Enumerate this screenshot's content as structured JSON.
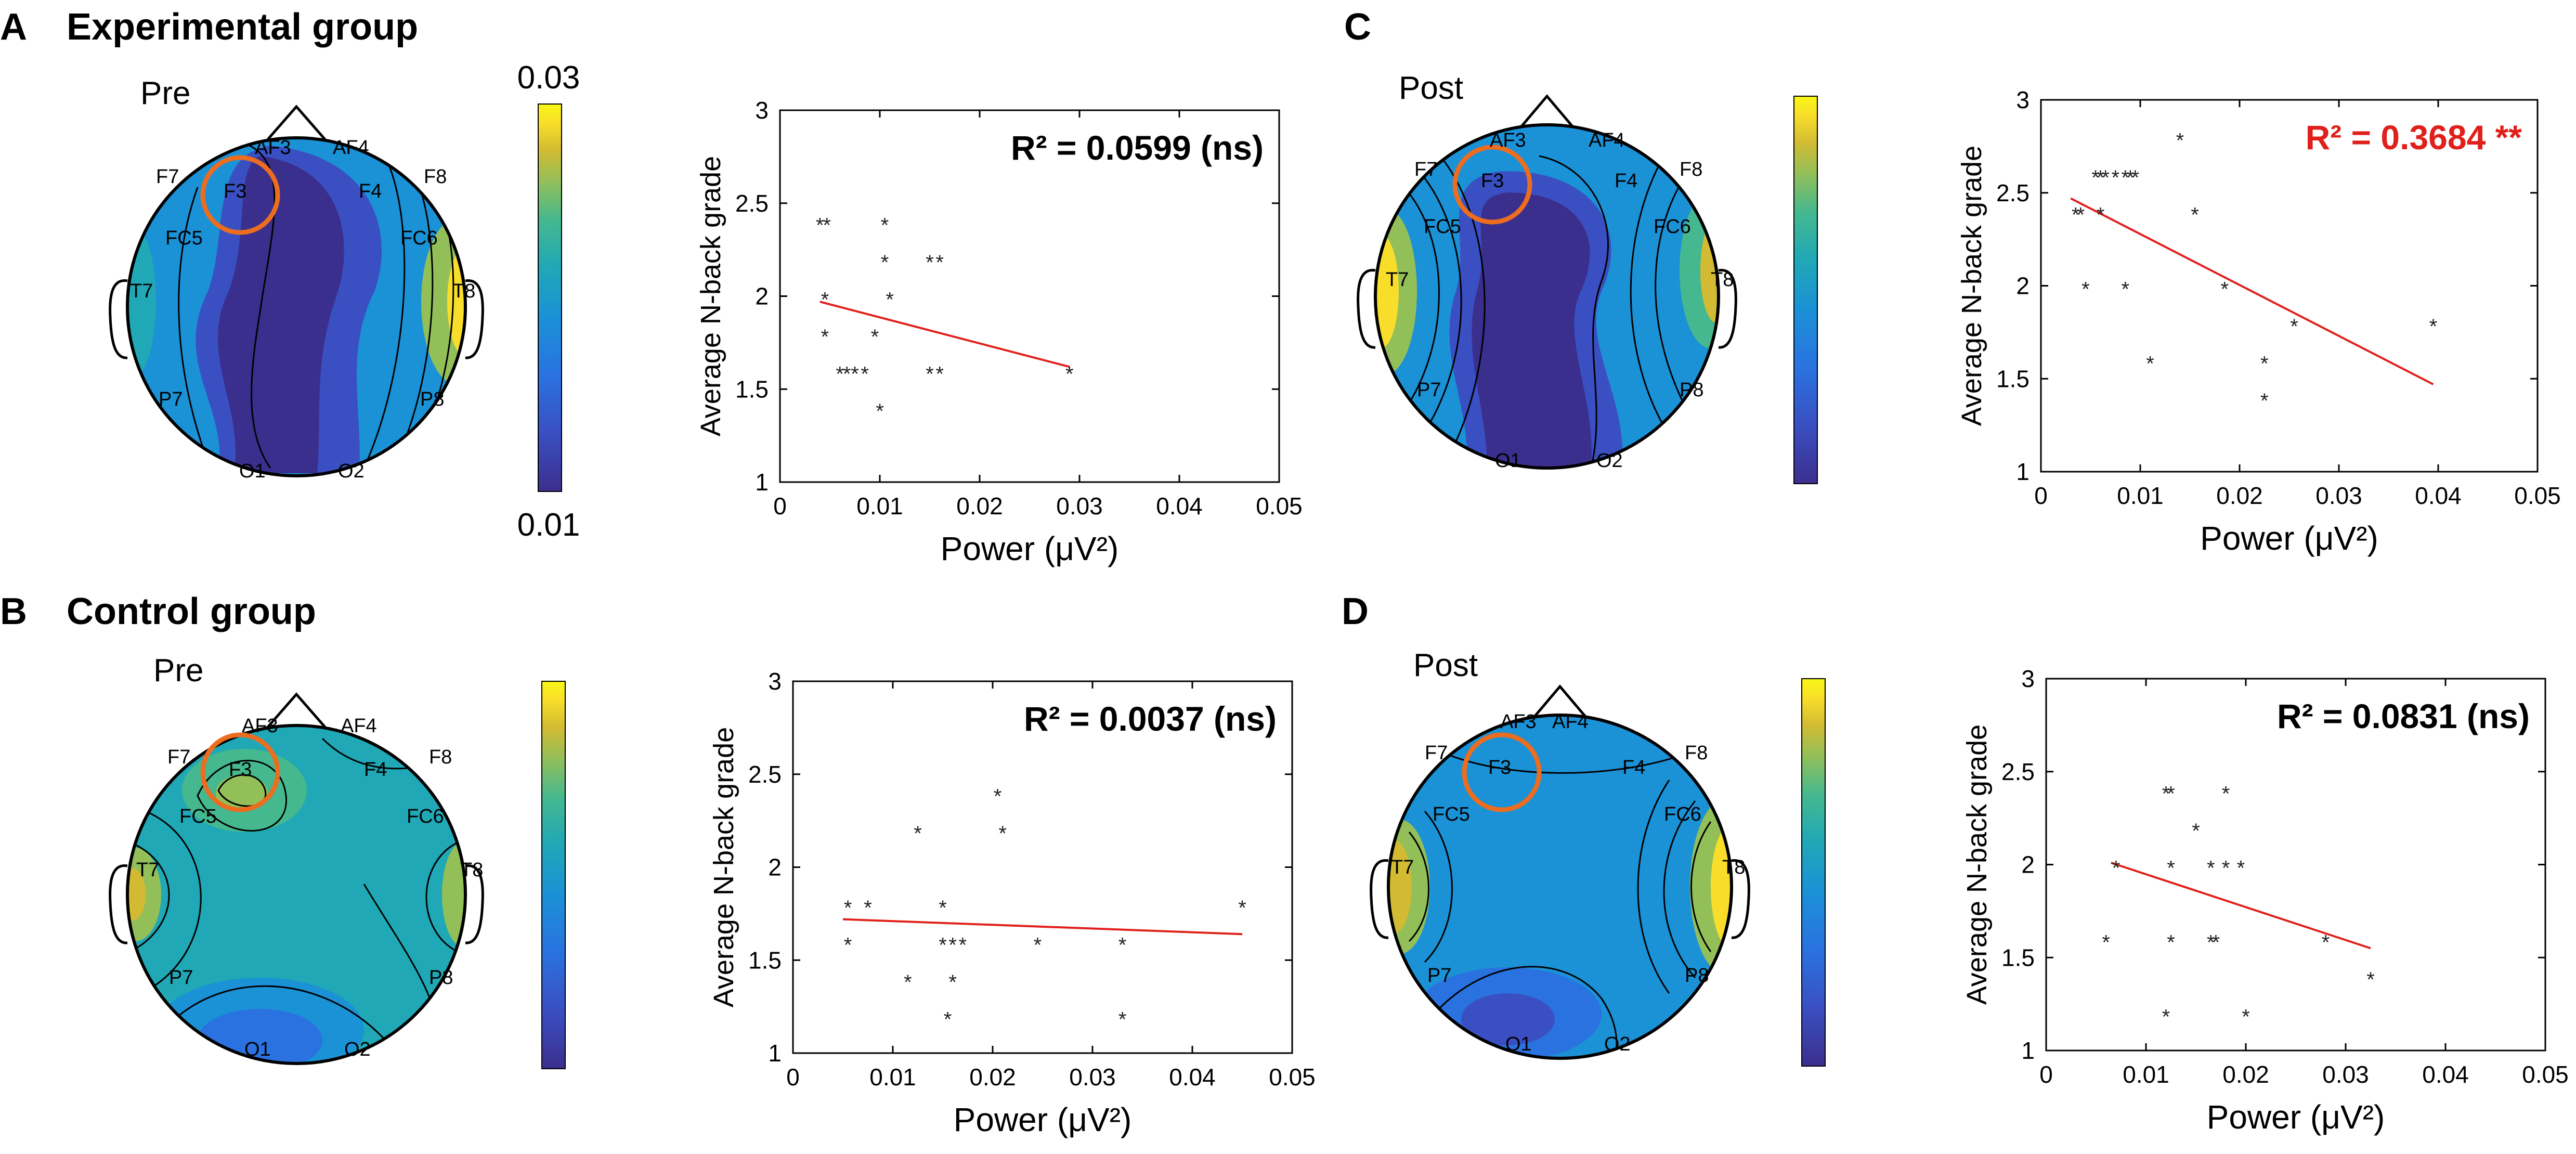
{
  "colors": {
    "axis": "#000000",
    "fit_line": "#e0201b",
    "sig_text": "#e0201b",
    "roi": "#ec6d1f",
    "marker": "#222222"
  },
  "colormap": [
    "#3b2f8e",
    "#3a4fc1",
    "#2a72e0",
    "#1b91d6",
    "#20a8b6",
    "#45b88f",
    "#93bf59",
    "#d2bb32",
    "#f8de2a",
    "#f9f715"
  ],
  "panels": [
    {
      "letter": "A",
      "group": "Experimental group",
      "topo": {
        "label": "Pre",
        "colorbar": {
          "top": "0.03",
          "bottom": "0.01"
        },
        "electrodes": [
          "AF3",
          "AF4",
          "F7",
          "F3",
          "F4",
          "F8",
          "FC5",
          "FC6",
          "T7",
          "T8",
          "P7",
          "P8",
          "O1",
          "O2"
        ],
        "roi": "F3"
      }
    },
    {
      "letter": "B",
      "group": "Control group",
      "topo": {
        "label": "Pre",
        "colorbar": {
          "top": "",
          "bottom": ""
        },
        "electrodes": [
          "AF3",
          "AF4",
          "F7",
          "F3",
          "F4",
          "F8",
          "FC5",
          "FC6",
          "T7",
          "T8",
          "P7",
          "P8",
          "O1",
          "O2"
        ],
        "roi": "F3"
      }
    },
    {
      "letter": "C",
      "group": "",
      "topo": {
        "label": "Post",
        "colorbar": {
          "top": "",
          "bottom": ""
        },
        "electrodes": [
          "AF3",
          "AF4",
          "F7",
          "F3",
          "F4",
          "F8",
          "FC5",
          "FC6",
          "T7",
          "T8",
          "P7",
          "P8",
          "O1",
          "O2"
        ],
        "roi": "F3"
      }
    },
    {
      "letter": "D",
      "group": "",
      "topo": {
        "label": "Post",
        "colorbar": {
          "top": "",
          "bottom": ""
        },
        "electrodes": [
          "AF3",
          "AF4",
          "F7",
          "F3",
          "F4",
          "F8",
          "FC5",
          "FC6",
          "T7",
          "T8",
          "P7",
          "P8",
          "O1",
          "O2"
        ],
        "roi": "F3"
      }
    }
  ],
  "chart_data": [
    {
      "id": "A",
      "type": "scatter",
      "xlabel": "Power (μV²)",
      "ylabel": "Average N-back grade",
      "xlim": [
        0,
        0.05
      ],
      "ylim": [
        1,
        3
      ],
      "xticks": [
        "0",
        "0.01",
        "0.02",
        "0.03",
        "0.04",
        "0.05"
      ],
      "yticks": [
        "1",
        "1.5",
        "2",
        "2.5",
        "3"
      ],
      "r2_label": "R² = 0.0599 (ns)",
      "significant": false,
      "fit": {
        "x": [
          0.004,
          0.029
        ],
        "y": [
          1.97,
          1.62
        ]
      },
      "points": [
        [
          0.004,
          2.4
        ],
        [
          0.0047,
          2.4
        ],
        [
          0.0105,
          2.4
        ],
        [
          0.0045,
          2.0
        ],
        [
          0.0045,
          1.8
        ],
        [
          0.006,
          1.6
        ],
        [
          0.0067,
          1.6
        ],
        [
          0.0075,
          1.6
        ],
        [
          0.0085,
          1.6
        ],
        [
          0.0095,
          1.8
        ],
        [
          0.01,
          1.4
        ],
        [
          0.0105,
          2.2
        ],
        [
          0.011,
          2.0
        ],
        [
          0.015,
          2.2
        ],
        [
          0.016,
          2.2
        ],
        [
          0.015,
          1.6
        ],
        [
          0.016,
          1.6
        ],
        [
          0.029,
          1.6
        ]
      ]
    },
    {
      "id": "B",
      "type": "scatter",
      "xlabel": "Power (μV²)",
      "ylabel": "Average N-back grade",
      "xlim": [
        0,
        0.05
      ],
      "ylim": [
        1,
        3
      ],
      "xticks": [
        "0",
        "0.01",
        "0.02",
        "0.03",
        "0.04",
        "0.05"
      ],
      "yticks": [
        "1",
        "1.5",
        "2",
        "2.5",
        "3"
      ],
      "r2_label": "R² = 0.0037 (ns)",
      "significant": false,
      "fit": {
        "x": [
          0.005,
          0.045
        ],
        "y": [
          1.72,
          1.64
        ]
      },
      "points": [
        [
          0.0055,
          1.8
        ],
        [
          0.0055,
          1.6
        ],
        [
          0.0075,
          1.8
        ],
        [
          0.0115,
          1.4
        ],
        [
          0.0125,
          2.2
        ],
        [
          0.015,
          1.8
        ],
        [
          0.015,
          1.6
        ],
        [
          0.016,
          1.6
        ],
        [
          0.017,
          1.6
        ],
        [
          0.0155,
          1.2
        ],
        [
          0.016,
          1.4
        ],
        [
          0.0205,
          2.4
        ],
        [
          0.021,
          2.2
        ],
        [
          0.0245,
          1.6
        ],
        [
          0.033,
          1.6
        ],
        [
          0.033,
          1.2
        ],
        [
          0.045,
          1.8
        ]
      ]
    },
    {
      "id": "C",
      "type": "scatter",
      "xlabel": "Power (μV²)",
      "ylabel": "Average N-back grade",
      "xlim": [
        0,
        0.05
      ],
      "ylim": [
        1,
        3
      ],
      "xticks": [
        "0",
        "0.01",
        "0.02",
        "0.03",
        "0.04",
        "0.05"
      ],
      "yticks": [
        "1",
        "1.5",
        "2",
        "2.5",
        "3"
      ],
      "r2_label": "R² = 0.3684 **",
      "significant": true,
      "fit": {
        "x": [
          0.003,
          0.0395
        ],
        "y": [
          2.47,
          1.47
        ]
      },
      "points": [
        [
          0.0035,
          2.4
        ],
        [
          0.004,
          2.4
        ],
        [
          0.0045,
          2.0
        ],
        [
          0.0055,
          2.6
        ],
        [
          0.006,
          2.6
        ],
        [
          0.0065,
          2.6
        ],
        [
          0.0075,
          2.6
        ],
        [
          0.0085,
          2.6
        ],
        [
          0.009,
          2.6
        ],
        [
          0.0095,
          2.6
        ],
        [
          0.006,
          2.4
        ],
        [
          0.0085,
          2.0
        ],
        [
          0.011,
          1.6
        ],
        [
          0.014,
          2.8
        ],
        [
          0.0155,
          2.4
        ],
        [
          0.0185,
          2.0
        ],
        [
          0.0225,
          1.6
        ],
        [
          0.0225,
          1.4
        ],
        [
          0.0255,
          1.8
        ],
        [
          0.0395,
          1.8
        ]
      ]
    },
    {
      "id": "D",
      "type": "scatter",
      "xlabel": "Power (μV²)",
      "ylabel": "Average N-back grade",
      "xlim": [
        0,
        0.05
      ],
      "ylim": [
        1,
        3
      ],
      "xticks": [
        "0",
        "0.01",
        "0.02",
        "0.03",
        "0.04",
        "0.05"
      ],
      "yticks": [
        "1",
        "1.5",
        "2",
        "2.5",
        "3"
      ],
      "r2_label": "R² = 0.0831 (ns)",
      "significant": false,
      "fit": {
        "x": [
          0.0065,
          0.0325
        ],
        "y": [
          2.01,
          1.55
        ]
      },
      "points": [
        [
          0.006,
          1.6
        ],
        [
          0.007,
          2.0
        ],
        [
          0.012,
          2.4
        ],
        [
          0.0125,
          2.4
        ],
        [
          0.0125,
          2.0
        ],
        [
          0.0125,
          1.6
        ],
        [
          0.012,
          1.2
        ],
        [
          0.015,
          2.2
        ],
        [
          0.0165,
          2.0
        ],
        [
          0.0165,
          1.6
        ],
        [
          0.017,
          1.6
        ],
        [
          0.018,
          2.4
        ],
        [
          0.018,
          2.0
        ],
        [
          0.0195,
          2.0
        ],
        [
          0.02,
          1.2
        ],
        [
          0.028,
          1.6
        ],
        [
          0.0325,
          1.4
        ]
      ]
    }
  ]
}
